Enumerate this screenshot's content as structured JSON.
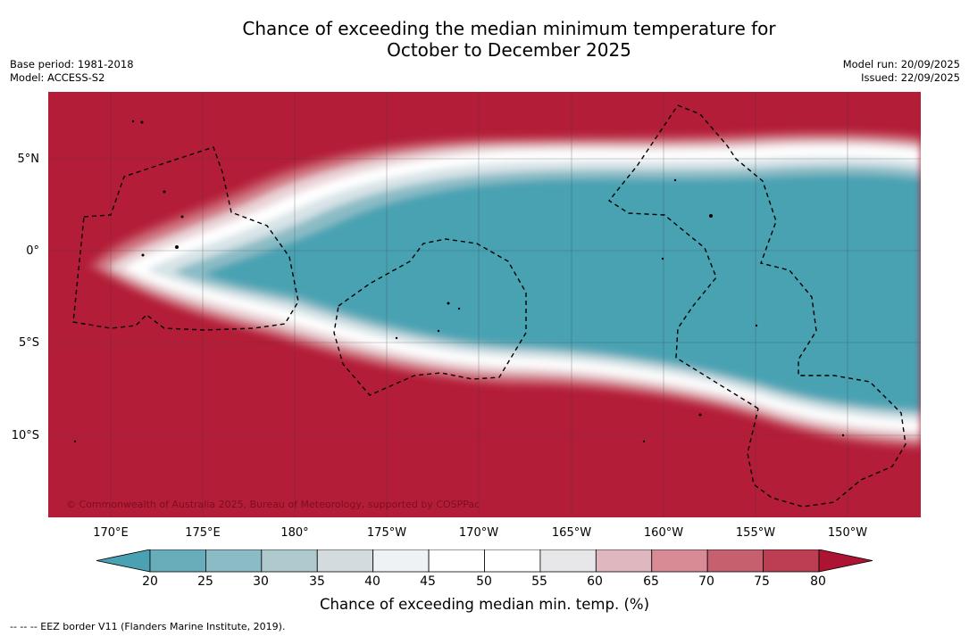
{
  "title": {
    "line1": "Chance of exceeding the median minimum temperature for",
    "line2": "October to December 2025"
  },
  "meta": {
    "base_period": "Base period: 1981-2018",
    "model": "Model: ACCESS-S2",
    "model_run": "Model run: 20/09/2025",
    "issued": "Issued: 22/09/2025"
  },
  "map": {
    "lat_labels": [
      "5°N",
      "0°",
      "5°S",
      "10°S"
    ],
    "lon_labels": [
      "170°E",
      "175°E",
      "180°",
      "175°W",
      "170°W",
      "165°W",
      "160°W",
      "155°W",
      "150°W"
    ],
    "copyright": "© Commonwealth of Australia 2025, Bureau of Meteorology, supported by COSPPac",
    "ocean_high_color": "#b31d38",
    "ocean_low_color": "#48a2b2"
  },
  "colorbar": {
    "ticks": [
      "20",
      "25",
      "30",
      "35",
      "40",
      "45",
      "50",
      "55",
      "60",
      "65",
      "70",
      "75",
      "80"
    ],
    "colors": [
      "#4aa1b1",
      "#6aadba",
      "#8bbcc6",
      "#aecace",
      "#d3dbde",
      "#eef2f4",
      "#ffffff",
      "#ffffff",
      "#e7e7e9",
      "#dfb8bf",
      "#d88b95",
      "#c6606f",
      "#bd3e52",
      "#ad1433"
    ],
    "label": "Chance of exceeding median min. temp. (%)"
  },
  "footer": {
    "legend": "--  --  -- EEZ border V11 (Flanders Marine Institute, 2019)."
  }
}
